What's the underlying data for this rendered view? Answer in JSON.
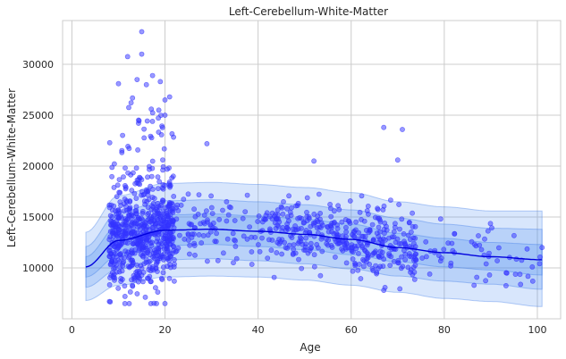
{
  "chart_data": {
    "type": "scatter",
    "title": "Left-Cerebellum-White-Matter",
    "xlabel": "Age",
    "ylabel": "Left-Cerebellum-White-Matter",
    "xlim": [
      -2,
      105
    ],
    "ylim": [
      5000,
      34300
    ],
    "grid": true,
    "legend": "none",
    "x_ticks": [
      0,
      20,
      40,
      60,
      80,
      100
    ],
    "y_ticks": [
      10000,
      15000,
      20000,
      25000,
      30000
    ],
    "x_tick_labels": [
      "0",
      "20",
      "40",
      "60",
      "80",
      "100"
    ],
    "y_tick_labels": [
      "10000",
      "15000",
      "20000",
      "25000",
      "30000"
    ],
    "colors": {
      "points": "#3333ff",
      "mean_line": "#0000dd",
      "band": "#4f8cf0",
      "band_edge": "#2f6fe6"
    },
    "points_summary": {
      "count": 1200,
      "age_range": [
        8,
        101
      ],
      "value_range": [
        6500,
        33200
      ],
      "dense_age_range": [
        8,
        22
      ]
    },
    "points_sample": [
      {
        "x": 15,
        "y": 33200
      },
      {
        "x": 15,
        "y": 31000
      },
      {
        "x": 10,
        "y": 28100
      },
      {
        "x": 14,
        "y": 28500
      },
      {
        "x": 16,
        "y": 28000
      },
      {
        "x": 19,
        "y": 28300
      },
      {
        "x": 21,
        "y": 26800
      },
      {
        "x": 20,
        "y": 26500
      },
      {
        "x": 20,
        "y": 25000
      },
      {
        "x": 29,
        "y": 22200
      },
      {
        "x": 52,
        "y": 20500
      },
      {
        "x": 67,
        "y": 23800
      },
      {
        "x": 71,
        "y": 23600
      },
      {
        "x": 70,
        "y": 20600
      },
      {
        "x": 20,
        "y": 6500
      },
      {
        "x": 67,
        "y": 7800
      },
      {
        "x": 99,
        "y": 8700
      },
      {
        "x": 101,
        "y": 12000
      },
      {
        "x": 88,
        "y": 11800
      },
      {
        "x": 22,
        "y": 8700
      }
    ],
    "series": [
      {
        "kind": "mean",
        "x": [
          3,
          10,
          20,
          30,
          40,
          50,
          60,
          70,
          80,
          90,
          101
        ],
        "values": [
          10100,
          12700,
          13700,
          13800,
          13600,
          13300,
          12800,
          12000,
          11500,
          11100,
          10800
        ]
      },
      {
        "kind": "band",
        "x": [
          3,
          10,
          20,
          30,
          40,
          50,
          60,
          70,
          80,
          90,
          101
        ],
        "lower": [
          9100,
          11200,
          12200,
          12300,
          12100,
          11800,
          11300,
          10600,
          10100,
          9800,
          9300
        ],
        "upper": [
          11100,
          14200,
          15200,
          15300,
          15100,
          14800,
          14300,
          13400,
          12900,
          12500,
          12300
        ]
      },
      {
        "kind": "band",
        "x": [
          3,
          10,
          20,
          30,
          40,
          50,
          60,
          70,
          80,
          90,
          101
        ],
        "lower": [
          8100,
          9900,
          10800,
          10900,
          10700,
          10400,
          9900,
          9200,
          8700,
          8400,
          7900
        ],
        "upper": [
          12100,
          15500,
          16600,
          16700,
          16500,
          16200,
          15700,
          14900,
          14300,
          13900,
          13800
        ]
      },
      {
        "kind": "band",
        "x": [
          3,
          10,
          20,
          30,
          40,
          50,
          60,
          70,
          80,
          90,
          101
        ],
        "lower": [
          6800,
          8300,
          9100,
          9200,
          9100,
          8800,
          8300,
          7600,
          7000,
          6700,
          6200
        ],
        "upper": [
          13500,
          17100,
          18300,
          18400,
          18200,
          17900,
          17400,
          16500,
          16000,
          15600,
          15600
        ]
      }
    ]
  }
}
